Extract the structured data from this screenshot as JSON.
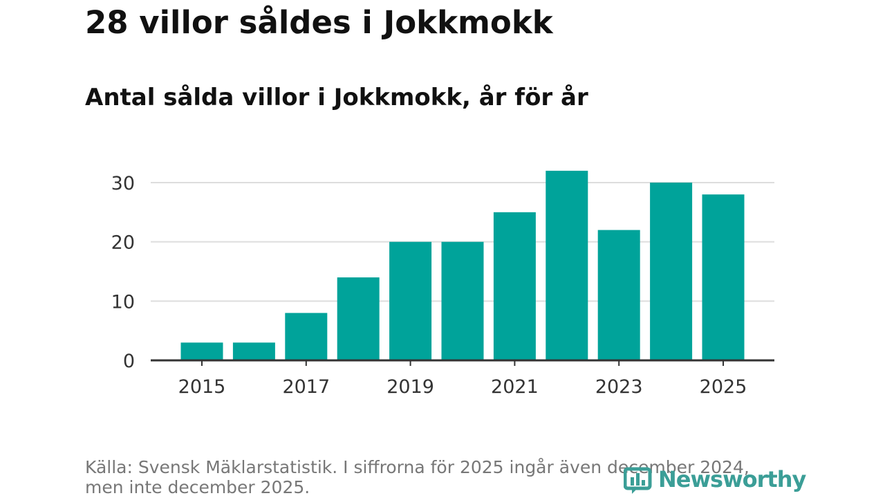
{
  "header": {
    "title": "28 villor såldes i Jokkmokk",
    "subtitle": "Antal sålda villor i Jokkmokk, år för år"
  },
  "footer": {
    "source_line1": "Källa: Svensk Mäklarstatistik. I siffrorna för 2025 ingår även december 2024,",
    "source_line2": "men inte december 2025."
  },
  "brand": {
    "name": "Newsworthy",
    "icon": "bar-chart-icon",
    "color": "#3b9e97"
  },
  "colors": {
    "bar": "#00a39a",
    "grid": "#dddddd",
    "axis": "#333333"
  },
  "chart_data": {
    "type": "bar",
    "title": "Antal sålda villor i Jokkmokk, år för år",
    "categories": [
      "2015",
      "2016",
      "2017",
      "2018",
      "2019",
      "2020",
      "2021",
      "2022",
      "2023",
      "2024",
      "2025"
    ],
    "values": [
      3,
      3,
      8,
      14,
      20,
      20,
      25,
      32,
      22,
      30,
      28
    ],
    "xticks": [
      "2015",
      "2017",
      "2019",
      "2021",
      "2023",
      "2025"
    ],
    "yticks": [
      0,
      10,
      20,
      30
    ],
    "ylim": [
      0,
      32
    ],
    "xlabel": "",
    "ylabel": "",
    "grid": true
  }
}
